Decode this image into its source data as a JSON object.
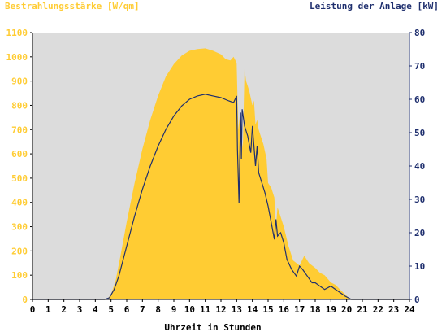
{
  "chart_data": {
    "type": "area",
    "left_axis_title": "Bestrahlungsstärke [W/qm]",
    "right_axis_title": "Leistung der Anlage [kW]",
    "xlabel": "Uhrzeit in Stunden",
    "xlim": [
      0,
      24
    ],
    "ylim_left": [
      0,
      1100
    ],
    "ylim_right": [
      0,
      80
    ],
    "x_ticks": [
      "0",
      "1",
      "2",
      "3",
      "4",
      "5",
      "6",
      "7",
      "8",
      "9",
      "10",
      "11",
      "12",
      "13",
      "14",
      "15",
      "16",
      "17",
      "18",
      "19",
      "20",
      "21",
      "22",
      "23",
      "24"
    ],
    "y_ticks_left": [
      "0",
      "100",
      "200",
      "300",
      "400",
      "500",
      "600",
      "700",
      "800",
      "900",
      "1000",
      "1100"
    ],
    "y_ticks_right": [
      "0",
      "10",
      "20",
      "30",
      "40",
      "50",
      "60",
      "70",
      "80"
    ],
    "grid": false,
    "colors": {
      "plot_bg": "#dcdcdc",
      "irradiance_fill": "#ffcc33",
      "power_line": "#1f2f6e",
      "left_axis_text": "#ffcc33",
      "right_axis_text": "#1f2f6e",
      "x_axis_text": "#000000"
    },
    "series": [
      {
        "axis": "left",
        "style": "area",
        "x": [
          0,
          4.5,
          4.8,
          5.0,
          5.3,
          5.6,
          6.0,
          6.5,
          7.0,
          7.5,
          8.0,
          8.5,
          9.0,
          9.5,
          10.0,
          10.5,
          11.0,
          11.5,
          12.0,
          12.3,
          12.6,
          12.8,
          13.0,
          13.1,
          13.2,
          13.3,
          13.4,
          13.5,
          13.6,
          13.7,
          13.8,
          13.9,
          14.0,
          14.1,
          14.2,
          14.3,
          14.4,
          14.5,
          14.7,
          14.9,
          15.0,
          15.2,
          15.4,
          15.5,
          15.6,
          15.8,
          16.0,
          16.3,
          16.6,
          17.0,
          17.3,
          17.6,
          18.0,
          18.3,
          18.6,
          19.0,
          19.3,
          19.6,
          20.0,
          20.2,
          24
        ],
        "values": [
          0,
          0,
          5,
          20,
          80,
          180,
          320,
          480,
          620,
          740,
          840,
          920,
          970,
          1005,
          1025,
          1032,
          1035,
          1025,
          1010,
          990,
          985,
          1000,
          975,
          700,
          760,
          600,
          650,
          950,
          900,
          880,
          860,
          830,
          800,
          820,
          720,
          740,
          700,
          680,
          640,
          580,
          480,
          460,
          420,
          300,
          380,
          340,
          300,
          220,
          160,
          140,
          180,
          150,
          130,
          110,
          100,
          70,
          60,
          40,
          15,
          0,
          0
        ]
      },
      {
        "axis": "right",
        "style": "line",
        "x": [
          0,
          4.6,
          4.9,
          5.2,
          5.5,
          6.0,
          6.5,
          7.0,
          7.5,
          8.0,
          8.5,
          9.0,
          9.5,
          10.0,
          10.5,
          11.0,
          11.5,
          12.0,
          12.5,
          12.8,
          13.0,
          13.05,
          13.15,
          13.25,
          13.3,
          13.35,
          13.5,
          13.7,
          13.9,
          14.0,
          14.1,
          14.2,
          14.3,
          14.4,
          14.6,
          14.8,
          15.0,
          15.2,
          15.4,
          15.5,
          15.6,
          15.8,
          16.0,
          16.2,
          16.5,
          16.8,
          17.0,
          17.2,
          17.5,
          17.8,
          18.0,
          18.3,
          18.6,
          19.0,
          19.3,
          19.6,
          19.9,
          20.1,
          20.3,
          24
        ],
        "values": [
          0,
          0,
          0.5,
          3,
          7,
          16,
          25,
          33,
          40,
          46,
          51,
          55,
          58,
          60,
          61,
          61.5,
          61,
          60.5,
          59.5,
          59,
          61,
          45,
          29,
          56,
          42,
          57,
          52,
          49,
          44,
          52,
          46,
          40,
          46,
          38,
          35,
          32,
          28,
          23,
          18,
          24,
          19,
          20,
          17,
          12,
          9,
          7,
          10,
          9,
          7,
          5,
          5,
          4,
          3,
          4,
          3,
          2,
          1,
          0.5,
          0,
          0
        ]
      }
    ]
  }
}
